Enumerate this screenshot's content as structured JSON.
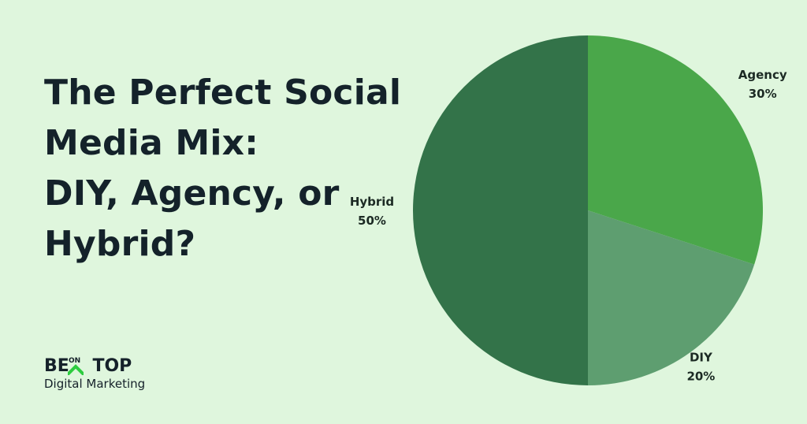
{
  "title_lines": [
    "The Perfect Social",
    "Media Mix:",
    "DIY, Agency, or",
    "Hybrid?"
  ],
  "logo": {
    "part_a": "BE",
    "part_on": "ON",
    "part_b": "TOP",
    "subtitle": "Digital Marketing",
    "accent_color": "#2ecc40"
  },
  "chart_data": {
    "type": "pie",
    "title": "The Perfect Social Media Mix: DIY, Agency, or Hybrid?",
    "start_angle_deg": 0,
    "direction": "clockwise",
    "slices": [
      {
        "label": "Agency",
        "value": 30,
        "value_label": "30%",
        "color": "#4aa74a"
      },
      {
        "label": "DIY",
        "value": 20,
        "value_label": "20%",
        "color": "#5e9e70"
      },
      {
        "label": "Hybrid",
        "value": 50,
        "value_label": "50%",
        "color": "#337349"
      }
    ]
  }
}
